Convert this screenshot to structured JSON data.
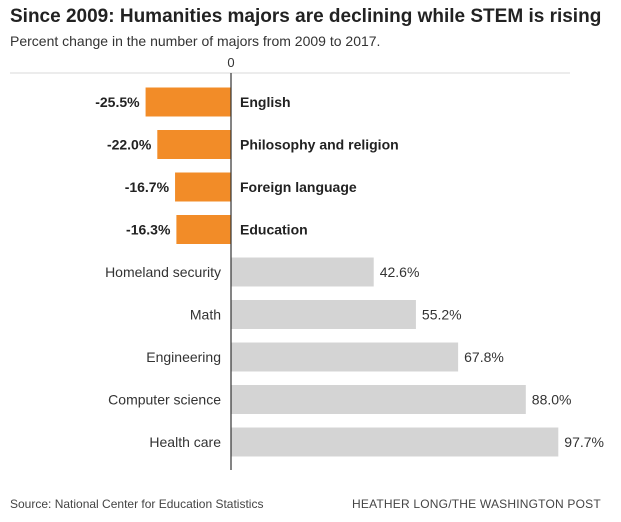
{
  "title": "Since 2009: Humanities majors are declining while STEM is rising",
  "subtitle": "Percent change in the number of majors from 2009 to 2017.",
  "source": "Source: National Center for Education Statistics",
  "credit": "HEATHER LONG/THE WASHINGTON POST",
  "colors": {
    "negative": "#f28c28",
    "positive": "#d4d4d4",
    "axis": "#333333",
    "gridline": "#d9d9d9"
  },
  "chart_data": {
    "type": "bar",
    "orientation": "horizontal",
    "zero_label": "0",
    "categories": [
      "English",
      "Philosophy and religion",
      "Foreign language",
      "Education",
      "Homeland security",
      "Math",
      "Engineering",
      "Computer science",
      "Health care"
    ],
    "values": [
      -25.5,
      -22.0,
      -16.7,
      -16.3,
      42.6,
      55.2,
      67.8,
      88.0,
      97.7
    ],
    "value_labels": [
      "-25.5%",
      "-22.0%",
      "-16.7%",
      "-16.3%",
      "42.6%",
      "55.2%",
      "67.8%",
      "88.0%",
      "97.7%"
    ],
    "xlim": [
      -60,
      100
    ],
    "xlabel": "",
    "ylabel": "",
    "grid": false
  }
}
